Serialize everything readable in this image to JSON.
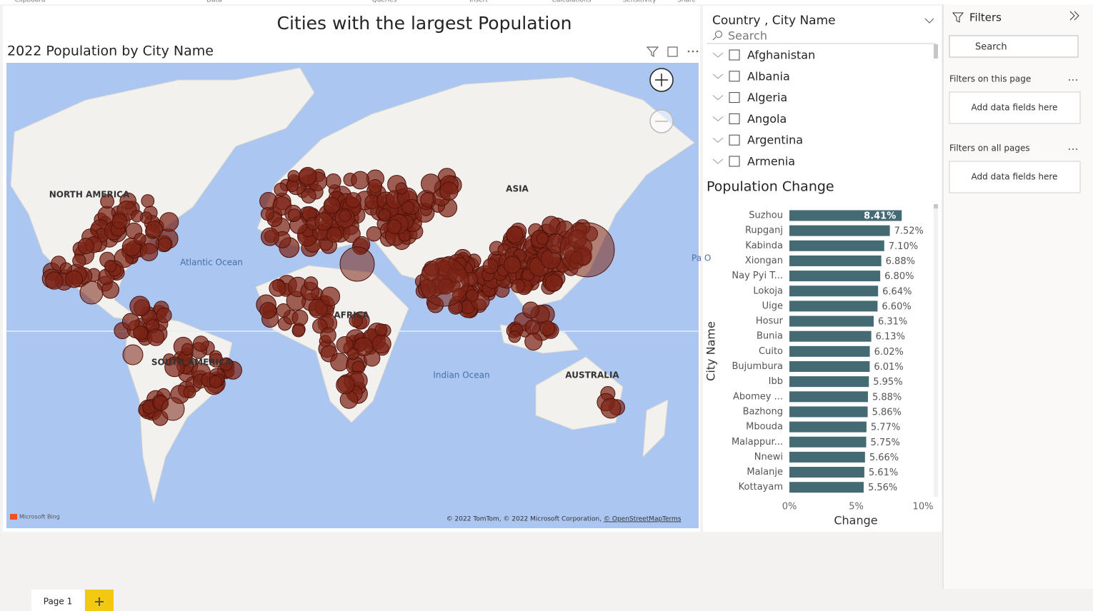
{
  "ribbon": {
    "groups": [
      "Clipboard",
      "Data",
      "Queries",
      "Insert",
      "Calculations",
      "Sensitivity",
      "Share"
    ]
  },
  "report": {
    "title": "Cities with the largest Population"
  },
  "map": {
    "title": "2022 Population by City Name",
    "labels": [
      "NORTH AMERICA",
      "ASIA",
      "Atlantic Ocean",
      "AFRICA",
      "SOUTH AMERICA",
      "Indian Ocean",
      "AUSTRALIA",
      "Pa O"
    ],
    "brand": "Microsoft Bing",
    "attribution": "© 2022 TomTom, © 2022 Microsoft Corporation,",
    "osm": "© OpenStreetMap",
    "terms": "Terms"
  },
  "slicer": {
    "header": "Country , City Name",
    "search": "Search",
    "items": [
      "Afghanistan",
      "Albania",
      "Algeria",
      "Angola",
      "Argentina",
      "Armenia"
    ]
  },
  "chart_data": {
    "type": "bar",
    "title": "Population Change",
    "x_label": "Change",
    "y_label": "City Name",
    "categories": [
      "Suzhou",
      "Rupganj",
      "Kabinda",
      "Xiongan",
      "Nay Pyi T...",
      "Lokoja",
      "Uige",
      "Hosur",
      "Bunia",
      "Cuito",
      "Bujumbura",
      "Ibb",
      "Abomey ...",
      "Bazhong",
      "Mbouda",
      "Malappur...",
      "Nnewi",
      "Malanje",
      "Kottayam"
    ],
    "values": [
      8.41,
      7.52,
      7.1,
      6.88,
      6.8,
      6.64,
      6.6,
      6.31,
      6.13,
      6.02,
      6.01,
      5.95,
      5.88,
      5.86,
      5.77,
      5.75,
      5.66,
      5.61,
      5.56
    ],
    "value_labels": [
      "8.41%",
      "7.52%",
      "7.10%",
      "6.88%",
      "6.80%",
      "6.64%",
      "6.60%",
      "6.31%",
      "6.13%",
      "6.02%",
      "6.01%",
      "5.95%",
      "5.88%",
      "5.86%",
      "5.77%",
      "5.75%",
      "5.66%",
      "5.61%",
      "5.56%"
    ],
    "color": "#446a74",
    "xlim": [
      0,
      10
    ],
    "xticks": [
      {
        "value": 0,
        "label": "0%"
      },
      {
        "value": 5,
        "label": "5%"
      },
      {
        "value": 10,
        "label": "10%"
      }
    ]
  },
  "filters": {
    "title": "Filters",
    "search": "Search",
    "sections": [
      {
        "title": "Filters on this page",
        "placeholder": "Add data fields here"
      },
      {
        "title": "Filters on all pages",
        "placeholder": "Add data fields here"
      }
    ]
  },
  "pages": {
    "tabs": [
      "Page 1"
    ]
  }
}
